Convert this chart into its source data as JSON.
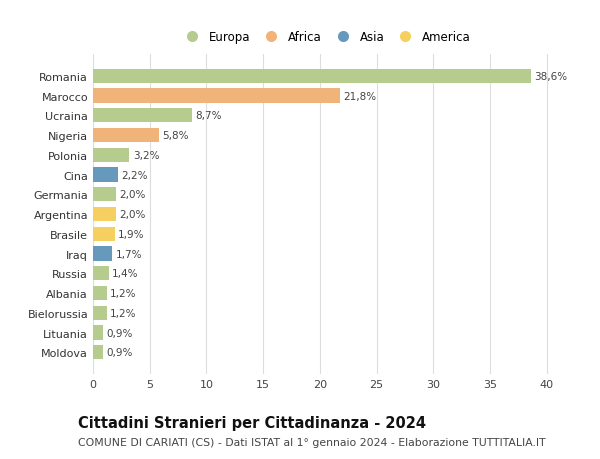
{
  "categories": [
    "Romania",
    "Marocco",
    "Ucraina",
    "Nigeria",
    "Polonia",
    "Cina",
    "Germania",
    "Argentina",
    "Brasile",
    "Iraq",
    "Russia",
    "Albania",
    "Bielorussia",
    "Lituania",
    "Moldova"
  ],
  "values": [
    38.6,
    21.8,
    8.7,
    5.8,
    3.2,
    2.2,
    2.0,
    2.0,
    1.9,
    1.7,
    1.4,
    1.2,
    1.2,
    0.9,
    0.9
  ],
  "labels": [
    "38,6%",
    "21,8%",
    "8,7%",
    "5,8%",
    "3,2%",
    "2,2%",
    "2,0%",
    "2,0%",
    "1,9%",
    "1,7%",
    "1,4%",
    "1,2%",
    "1,2%",
    "0,9%",
    "0,9%"
  ],
  "continents": [
    "Europa",
    "Africa",
    "Europa",
    "Africa",
    "Europa",
    "Asia",
    "Europa",
    "America",
    "America",
    "Asia",
    "Europa",
    "Europa",
    "Europa",
    "Europa",
    "Europa"
  ],
  "continent_colors": {
    "Europa": "#b5cc8e",
    "Africa": "#f0b47a",
    "Asia": "#6699bb",
    "America": "#f5d060"
  },
  "legend_order": [
    "Europa",
    "Africa",
    "Asia",
    "America"
  ],
  "title": "Cittadini Stranieri per Cittadinanza - 2024",
  "subtitle": "COMUNE DI CARIATI (CS) - Dati ISTAT al 1° gennaio 2024 - Elaborazione TUTTITALIA.IT",
  "xlim": [
    0,
    41
  ],
  "xticks": [
    0,
    5,
    10,
    15,
    20,
    25,
    30,
    35,
    40
  ],
  "background_color": "#ffffff",
  "grid_color": "#dddddd",
  "bar_height": 0.72,
  "title_fontsize": 10.5,
  "subtitle_fontsize": 7.8,
  "label_fontsize": 7.5,
  "tick_fontsize": 8,
  "legend_fontsize": 8.5
}
